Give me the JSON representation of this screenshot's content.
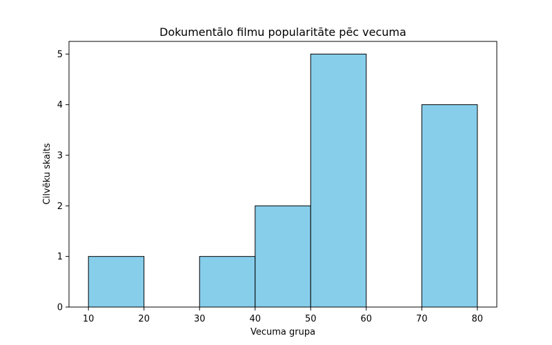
{
  "chart_data": {
    "type": "bar",
    "title": "Dokumentālo filmu popularitāte pēc vecuma",
    "xlabel": "Vecuma grupa",
    "ylabel": "Cilvēku skaits",
    "bins": [
      {
        "start": 10,
        "end": 20,
        "value": 1
      },
      {
        "start": 20,
        "end": 30,
        "value": 0
      },
      {
        "start": 30,
        "end": 40,
        "value": 1
      },
      {
        "start": 40,
        "end": 50,
        "value": 2
      },
      {
        "start": 50,
        "end": 60,
        "value": 5
      },
      {
        "start": 60,
        "end": 70,
        "value": 0
      },
      {
        "start": 70,
        "end": 80,
        "value": 4
      }
    ],
    "xlim": [
      6.5,
      83.5
    ],
    "ylim": [
      0,
      5.25
    ],
    "xticks": [
      10,
      20,
      30,
      40,
      50,
      60,
      70,
      80
    ],
    "yticks": [
      0,
      1,
      2,
      3,
      4,
      5
    ],
    "bar_color": "#87ceeb",
    "edge_color": "#000000",
    "grid": false,
    "legend": "none"
  }
}
